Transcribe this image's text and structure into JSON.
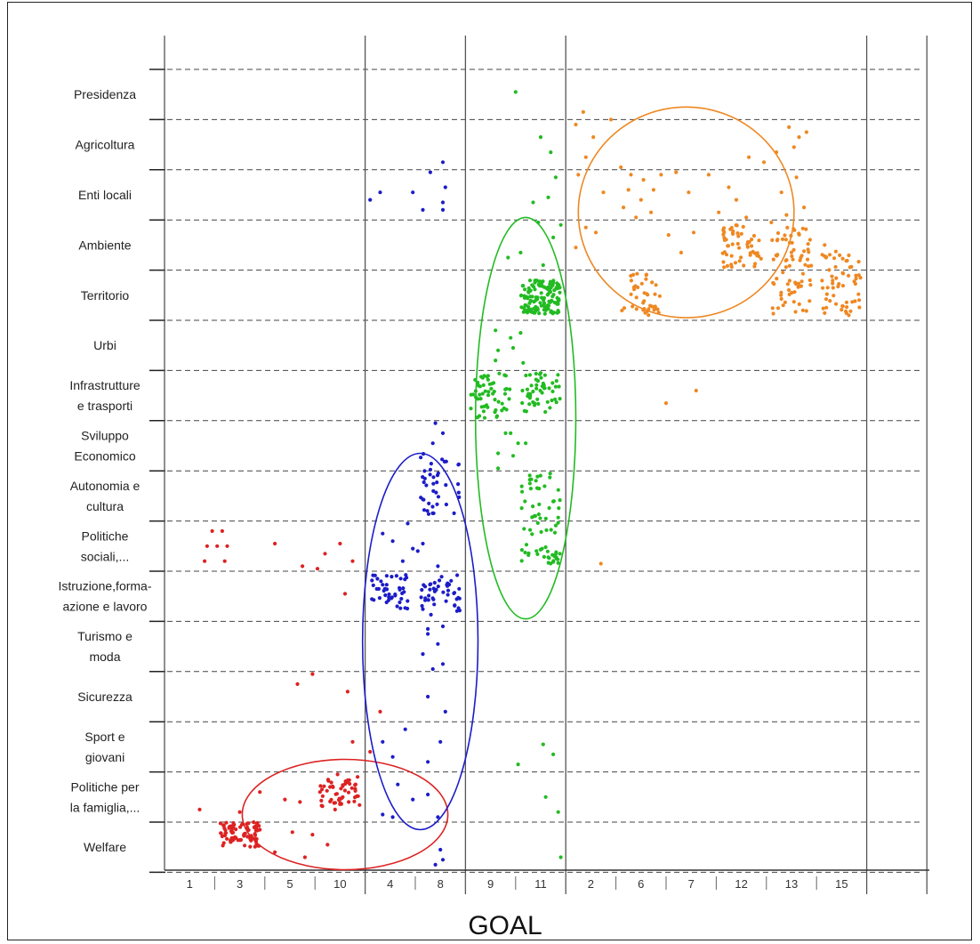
{
  "chart_data": {
    "type": "scatter",
    "xlabel": "GOAL",
    "ylabel": "",
    "x_groups": [
      {
        "goals": [
          "1",
          "3",
          "5",
          "10"
        ]
      },
      {
        "goals": [
          "4",
          "8"
        ]
      },
      {
        "goals": [
          "9",
          "11"
        ]
      },
      {
        "goals": [
          "2",
          "6",
          "7",
          "12",
          "13",
          "15"
        ]
      }
    ],
    "x_ticks": [
      "1",
      "3",
      "5",
      "10",
      "4",
      "8",
      "9",
      "11",
      "2",
      "6",
      "7",
      "12",
      "13",
      "15"
    ],
    "y_categories": [
      "Presidenza",
      "Agricoltura",
      "Enti locali",
      "Ambiente",
      "Territorio",
      "Urbi",
      "Infrastrutture e trasporti",
      "Sviluppo Economico",
      "Autonomia e cultura",
      "Politiche sociali,...",
      "Istruzione,forma-azione e lavoro",
      "Turismo e moda",
      "Sicurezza",
      "Sport e giovani",
      "Politiche per la famiglia,...",
      "Welfare"
    ],
    "y_labels": [
      [
        "Presidenza"
      ],
      [
        "Agricoltura"
      ],
      [
        "Enti locali"
      ],
      [
        "Ambiente"
      ],
      [
        "Territorio"
      ],
      [
        "Urbi"
      ],
      [
        "Infrastrutture",
        "e trasporti"
      ],
      [
        "Sviluppo",
        "Economico"
      ],
      [
        "Autonomia e",
        "cultura"
      ],
      [
        "Politiche",
        "sociali,..."
      ],
      [
        "Istruzione,forma-",
        "azione e lavoro"
      ],
      [
        "Turismo e",
        "moda"
      ],
      [
        "Sicurezza"
      ],
      [
        "Sport e",
        "giovani"
      ],
      [
        "Politiche per",
        "la famiglia,..."
      ],
      [
        "Welfare"
      ]
    ],
    "grid": "horizontal dashed between categories, vertical solid between goal groups",
    "legend": "none",
    "colors": {
      "red": "#dd2222",
      "blue": "#1c1cc8",
      "green": "#22bb22",
      "orange": "#ee8822"
    },
    "clusters": [
      {
        "color": "red",
        "ellipse": {
          "center_goal": 3.6,
          "center_cat": 14.85,
          "goal_radius": 2.05,
          "cat_radius": 1.1
        },
        "dense_blocks": [
          {
            "goal": "3",
            "cats": [
              15,
              15.5
            ],
            "count": 85
          },
          {
            "goal": "10",
            "cats": [
              14.15,
              14.7
            ],
            "count": 50
          }
        ],
        "points": [
          [
            0.95,
            9.2
          ],
          [
            1.15,
            9.2
          ],
          [
            0.85,
            9.5
          ],
          [
            1.05,
            9.5
          ],
          [
            1.25,
            9.5
          ],
          [
            0.8,
            9.8
          ],
          [
            1.2,
            9.8
          ],
          [
            2.2,
            9.45
          ],
          [
            2.75,
            9.9
          ],
          [
            3.2,
            9.65
          ],
          [
            3.05,
            9.95
          ],
          [
            3.5,
            9.45
          ],
          [
            3.75,
            9.8
          ],
          [
            3.6,
            10.45
          ],
          [
            2.65,
            12.25
          ],
          [
            2.95,
            12.05
          ],
          [
            3.65,
            12.4
          ],
          [
            3.75,
            13.4
          ],
          [
            4.3,
            12.8
          ],
          [
            0.7,
            14.75
          ],
          [
            1.5,
            14.8
          ],
          [
            1.9,
            14.4
          ],
          [
            2.4,
            14.55
          ],
          [
            2.7,
            14.6
          ],
          [
            3.1,
            14.4
          ],
          [
            3.3,
            14.3
          ],
          [
            3.4,
            14.75
          ],
          [
            1.9,
            15.15
          ],
          [
            2.55,
            15.2
          ],
          [
            2.95,
            15.25
          ],
          [
            3.25,
            15.45
          ],
          [
            3.45,
            14.05
          ],
          [
            2.2,
            15.6
          ],
          [
            2.8,
            15.7
          ],
          [
            4.1,
            13.6
          ],
          [
            3.85,
            14.1
          ]
        ]
      },
      {
        "color": "blue",
        "ellipse": {
          "center_goal": 5.1,
          "center_cat": 11.4,
          "goal_radius": 1.15,
          "cat_radius": 3.75
        },
        "dense_blocks": [
          {
            "goal": "4",
            "cats": [
              10.05,
              10.75
            ],
            "count": 45
          },
          {
            "goal": "8",
            "cats": [
              10.05,
              10.9
            ],
            "count": 45
          },
          {
            "goal": "8",
            "cats": [
              7.6,
              8.9
            ],
            "count": 40
          }
        ],
        "points": [
          [
            5.3,
            2.05
          ],
          [
            5.55,
            1.85
          ],
          [
            5.6,
            2.35
          ],
          [
            4.1,
            2.6
          ],
          [
            4.3,
            2.45
          ],
          [
            4.95,
            2.45
          ],
          [
            5.55,
            2.65
          ],
          [
            5.15,
            2.8
          ],
          [
            5.55,
            2.8
          ],
          [
            4.35,
            9.25
          ],
          [
            4.55,
            9.4
          ],
          [
            4.85,
            9.05
          ],
          [
            5.05,
            9.6
          ],
          [
            5.15,
            9.45
          ],
          [
            5.45,
            9.9
          ],
          [
            4.75,
            9.8
          ],
          [
            4.95,
            9.55
          ],
          [
            5.55,
            11.1
          ],
          [
            5.25,
            11.25
          ],
          [
            5.45,
            11.45
          ],
          [
            5.15,
            11.65
          ],
          [
            5.35,
            11.95
          ],
          [
            5.55,
            11.85
          ],
          [
            5.25,
            11.15
          ],
          [
            5.6,
            12.8
          ],
          [
            5.25,
            12.5
          ],
          [
            5.5,
            13.4
          ],
          [
            4.35,
            13.4
          ],
          [
            4.8,
            13.15
          ],
          [
            4.55,
            13.7
          ],
          [
            5.25,
            13.8
          ],
          [
            4.65,
            14.25
          ],
          [
            4.95,
            14.55
          ],
          [
            4.35,
            14.85
          ],
          [
            4.55,
            14.9
          ],
          [
            5.25,
            14.45
          ],
          [
            5.45,
            14.9
          ],
          [
            5.5,
            15.55
          ],
          [
            5.4,
            15.85
          ],
          [
            5.55,
            15.75
          ],
          [
            5.4,
            7.05
          ],
          [
            5.55,
            7.25
          ],
          [
            5.35,
            7.45
          ]
        ]
      },
      {
        "color": "green",
        "ellipse": {
          "center_goal": 7.2,
          "center_cat": 6.95,
          "goal_radius": 1.0,
          "cat_radius": 4.0
        },
        "dense_blocks": [
          {
            "goal": "11",
            "cats": [
              4.2,
              4.9
            ],
            "count": 130
          },
          {
            "goal": "9",
            "cats": [
              6.05,
              6.95
            ],
            "count": 55
          },
          {
            "goal": "11",
            "cats": [
              6.05,
              6.85
            ],
            "count": 50
          },
          {
            "goal": "11",
            "cats": [
              8.05,
              9.85
            ],
            "count": 70
          }
        ],
        "points": [
          [
            7.0,
            0.45
          ],
          [
            7.5,
            1.35
          ],
          [
            7.7,
            1.65
          ],
          [
            7.8,
            2.15
          ],
          [
            7.65,
            2.55
          ],
          [
            7.35,
            2.65
          ],
          [
            7.9,
            3.1
          ],
          [
            7.45,
            3.05
          ],
          [
            6.85,
            3.75
          ],
          [
            7.1,
            3.65
          ],
          [
            7.55,
            3.9
          ],
          [
            7.75,
            3.35
          ],
          [
            6.6,
            5.2
          ],
          [
            6.9,
            5.35
          ],
          [
            7.1,
            5.25
          ],
          [
            6.65,
            5.6
          ],
          [
            6.95,
            5.55
          ],
          [
            7.15,
            5.85
          ],
          [
            6.6,
            5.8
          ],
          [
            6.8,
            7.25
          ],
          [
            7.05,
            7.45
          ],
          [
            6.65,
            7.65
          ],
          [
            6.95,
            7.7
          ],
          [
            7.2,
            7.45
          ],
          [
            6.65,
            7.95
          ],
          [
            6.9,
            7.25
          ],
          [
            7.55,
            13.45
          ],
          [
            7.75,
            13.65
          ],
          [
            7.05,
            13.85
          ],
          [
            7.6,
            14.5
          ],
          [
            7.85,
            14.8
          ],
          [
            7.9,
            15.7
          ]
        ]
      },
      {
        "color": "orange",
        "ellipse": {
          "center_goal": 10.4,
          "center_cat": 2.85,
          "goal_radius": 2.15,
          "cat_radius": 2.1
        },
        "dense_blocks": [
          {
            "goal": "6",
            "cats": [
              4.05,
              4.9
            ],
            "count": 40
          },
          {
            "goal": "12",
            "cats": [
              3.1,
              3.95
            ],
            "count": 55
          },
          {
            "goal": "13",
            "cats": [
              3.15,
              4.9
            ],
            "count": 75
          },
          {
            "goal": "15",
            "cats": [
              3.5,
              4.9
            ],
            "count": 60
          }
        ],
        "points": [
          [
            8.2,
            1.1
          ],
          [
            8.35,
            0.85
          ],
          [
            8.55,
            1.35
          ],
          [
            8.9,
            1.0
          ],
          [
            8.25,
            2.1
          ],
          [
            8.4,
            1.75
          ],
          [
            8.75,
            2.45
          ],
          [
            8.4,
            3.15
          ],
          [
            8.2,
            3.55
          ],
          [
            8.6,
            3.25
          ],
          [
            9.1,
            1.95
          ],
          [
            9.3,
            2.1
          ],
          [
            9.55,
            2.2
          ],
          [
            9.25,
            2.4
          ],
          [
            9.5,
            2.6
          ],
          [
            9.15,
            2.75
          ],
          [
            9.4,
            2.95
          ],
          [
            9.7,
            2.85
          ],
          [
            9.9,
            2.1
          ],
          [
            9.75,
            2.4
          ],
          [
            10.2,
            2.05
          ],
          [
            10.45,
            2.45
          ],
          [
            10.05,
            3.3
          ],
          [
            10.3,
            3.65
          ],
          [
            10.55,
            3.25
          ],
          [
            10.85,
            2.1
          ],
          [
            11.05,
            2.85
          ],
          [
            11.25,
            2.35
          ],
          [
            11.4,
            2.6
          ],
          [
            11.6,
            2.95
          ],
          [
            11.65,
            1.75
          ],
          [
            11.95,
            1.85
          ],
          [
            12.2,
            1.65
          ],
          [
            12.3,
            2.45
          ],
          [
            12.6,
            2.15
          ],
          [
            12.75,
            2.75
          ],
          [
            12.4,
            2.9
          ],
          [
            12.1,
            3.05
          ],
          [
            12.45,
            1.15
          ],
          [
            12.65,
            1.35
          ],
          [
            12.55,
            1.55
          ],
          [
            12.8,
            1.25
          ],
          [
            8.7,
            9.85
          ],
          [
            10.0,
            6.65
          ],
          [
            10.6,
            6.4
          ]
        ]
      }
    ]
  }
}
